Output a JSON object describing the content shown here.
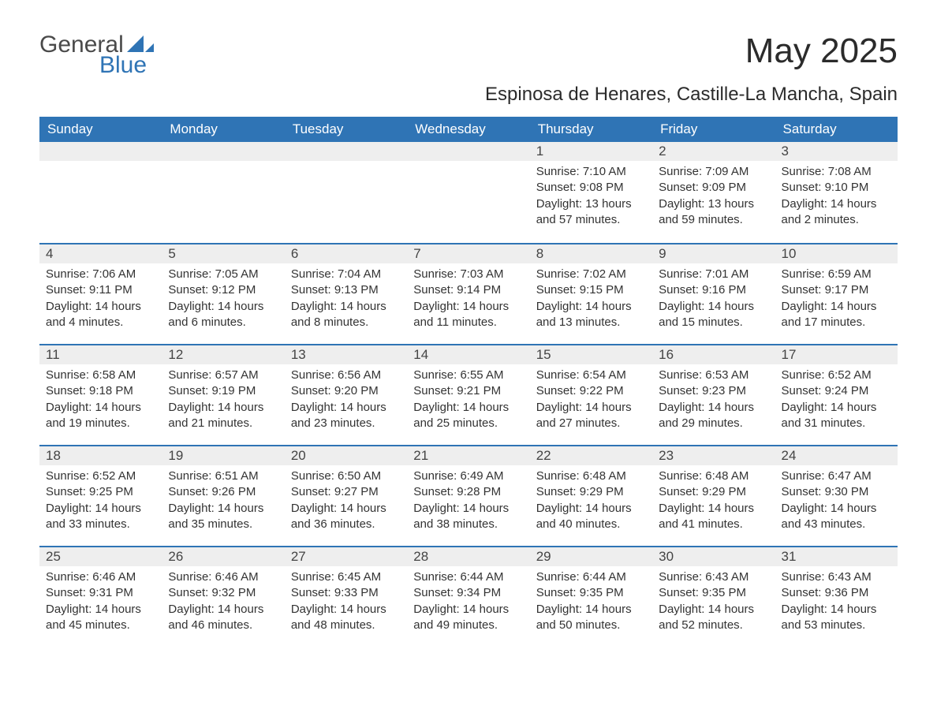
{
  "logo": {
    "word1": "General",
    "word2": "Blue"
  },
  "title": "May 2025",
  "location": "Espinosa de Henares, Castille-La Mancha, Spain",
  "colors": {
    "brand_blue": "#2f74b5",
    "header_bg": "#2f74b5",
    "header_text": "#ffffff",
    "daynum_bg": "#eeeeee",
    "body_text": "#333333",
    "page_bg": "#ffffff"
  },
  "header_fontsize": 17,
  "body_fontsize": 15,
  "columns": [
    "Sunday",
    "Monday",
    "Tuesday",
    "Wednesday",
    "Thursday",
    "Friday",
    "Saturday"
  ],
  "weeks": [
    [
      null,
      null,
      null,
      null,
      {
        "n": "1",
        "sunrise": "Sunrise: 7:10 AM",
        "sunset": "Sunset: 9:08 PM",
        "daylight": "Daylight: 13 hours and 57 minutes."
      },
      {
        "n": "2",
        "sunrise": "Sunrise: 7:09 AM",
        "sunset": "Sunset: 9:09 PM",
        "daylight": "Daylight: 13 hours and 59 minutes."
      },
      {
        "n": "3",
        "sunrise": "Sunrise: 7:08 AM",
        "sunset": "Sunset: 9:10 PM",
        "daylight": "Daylight: 14 hours and 2 minutes."
      }
    ],
    [
      {
        "n": "4",
        "sunrise": "Sunrise: 7:06 AM",
        "sunset": "Sunset: 9:11 PM",
        "daylight": "Daylight: 14 hours and 4 minutes."
      },
      {
        "n": "5",
        "sunrise": "Sunrise: 7:05 AM",
        "sunset": "Sunset: 9:12 PM",
        "daylight": "Daylight: 14 hours and 6 minutes."
      },
      {
        "n": "6",
        "sunrise": "Sunrise: 7:04 AM",
        "sunset": "Sunset: 9:13 PM",
        "daylight": "Daylight: 14 hours and 8 minutes."
      },
      {
        "n": "7",
        "sunrise": "Sunrise: 7:03 AM",
        "sunset": "Sunset: 9:14 PM",
        "daylight": "Daylight: 14 hours and 11 minutes."
      },
      {
        "n": "8",
        "sunrise": "Sunrise: 7:02 AM",
        "sunset": "Sunset: 9:15 PM",
        "daylight": "Daylight: 14 hours and 13 minutes."
      },
      {
        "n": "9",
        "sunrise": "Sunrise: 7:01 AM",
        "sunset": "Sunset: 9:16 PM",
        "daylight": "Daylight: 14 hours and 15 minutes."
      },
      {
        "n": "10",
        "sunrise": "Sunrise: 6:59 AM",
        "sunset": "Sunset: 9:17 PM",
        "daylight": "Daylight: 14 hours and 17 minutes."
      }
    ],
    [
      {
        "n": "11",
        "sunrise": "Sunrise: 6:58 AM",
        "sunset": "Sunset: 9:18 PM",
        "daylight": "Daylight: 14 hours and 19 minutes."
      },
      {
        "n": "12",
        "sunrise": "Sunrise: 6:57 AM",
        "sunset": "Sunset: 9:19 PM",
        "daylight": "Daylight: 14 hours and 21 minutes."
      },
      {
        "n": "13",
        "sunrise": "Sunrise: 6:56 AM",
        "sunset": "Sunset: 9:20 PM",
        "daylight": "Daylight: 14 hours and 23 minutes."
      },
      {
        "n": "14",
        "sunrise": "Sunrise: 6:55 AM",
        "sunset": "Sunset: 9:21 PM",
        "daylight": "Daylight: 14 hours and 25 minutes."
      },
      {
        "n": "15",
        "sunrise": "Sunrise: 6:54 AM",
        "sunset": "Sunset: 9:22 PM",
        "daylight": "Daylight: 14 hours and 27 minutes."
      },
      {
        "n": "16",
        "sunrise": "Sunrise: 6:53 AM",
        "sunset": "Sunset: 9:23 PM",
        "daylight": "Daylight: 14 hours and 29 minutes."
      },
      {
        "n": "17",
        "sunrise": "Sunrise: 6:52 AM",
        "sunset": "Sunset: 9:24 PM",
        "daylight": "Daylight: 14 hours and 31 minutes."
      }
    ],
    [
      {
        "n": "18",
        "sunrise": "Sunrise: 6:52 AM",
        "sunset": "Sunset: 9:25 PM",
        "daylight": "Daylight: 14 hours and 33 minutes."
      },
      {
        "n": "19",
        "sunrise": "Sunrise: 6:51 AM",
        "sunset": "Sunset: 9:26 PM",
        "daylight": "Daylight: 14 hours and 35 minutes."
      },
      {
        "n": "20",
        "sunrise": "Sunrise: 6:50 AM",
        "sunset": "Sunset: 9:27 PM",
        "daylight": "Daylight: 14 hours and 36 minutes."
      },
      {
        "n": "21",
        "sunrise": "Sunrise: 6:49 AM",
        "sunset": "Sunset: 9:28 PM",
        "daylight": "Daylight: 14 hours and 38 minutes."
      },
      {
        "n": "22",
        "sunrise": "Sunrise: 6:48 AM",
        "sunset": "Sunset: 9:29 PM",
        "daylight": "Daylight: 14 hours and 40 minutes."
      },
      {
        "n": "23",
        "sunrise": "Sunrise: 6:48 AM",
        "sunset": "Sunset: 9:29 PM",
        "daylight": "Daylight: 14 hours and 41 minutes."
      },
      {
        "n": "24",
        "sunrise": "Sunrise: 6:47 AM",
        "sunset": "Sunset: 9:30 PM",
        "daylight": "Daylight: 14 hours and 43 minutes."
      }
    ],
    [
      {
        "n": "25",
        "sunrise": "Sunrise: 6:46 AM",
        "sunset": "Sunset: 9:31 PM",
        "daylight": "Daylight: 14 hours and 45 minutes."
      },
      {
        "n": "26",
        "sunrise": "Sunrise: 6:46 AM",
        "sunset": "Sunset: 9:32 PM",
        "daylight": "Daylight: 14 hours and 46 minutes."
      },
      {
        "n": "27",
        "sunrise": "Sunrise: 6:45 AM",
        "sunset": "Sunset: 9:33 PM",
        "daylight": "Daylight: 14 hours and 48 minutes."
      },
      {
        "n": "28",
        "sunrise": "Sunrise: 6:44 AM",
        "sunset": "Sunset: 9:34 PM",
        "daylight": "Daylight: 14 hours and 49 minutes."
      },
      {
        "n": "29",
        "sunrise": "Sunrise: 6:44 AM",
        "sunset": "Sunset: 9:35 PM",
        "daylight": "Daylight: 14 hours and 50 minutes."
      },
      {
        "n": "30",
        "sunrise": "Sunrise: 6:43 AM",
        "sunset": "Sunset: 9:35 PM",
        "daylight": "Daylight: 14 hours and 52 minutes."
      },
      {
        "n": "31",
        "sunrise": "Sunrise: 6:43 AM",
        "sunset": "Sunset: 9:36 PM",
        "daylight": "Daylight: 14 hours and 53 minutes."
      }
    ]
  ]
}
